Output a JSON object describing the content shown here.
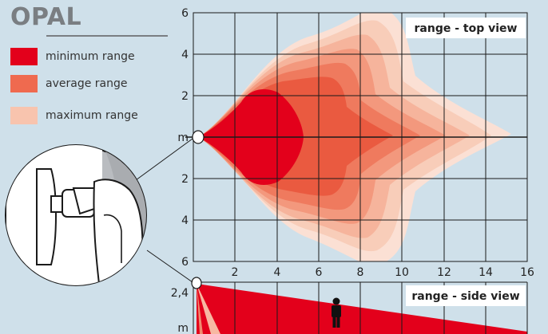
{
  "title": "OPAL",
  "legend": [
    {
      "label": "minimum range",
      "color": "#e3001b"
    },
    {
      "label": "average range",
      "color": "#ef6a4f"
    },
    {
      "label": "maximum range",
      "color": "#f8c4ae"
    }
  ],
  "top_view": {
    "label": "range - top view",
    "y_ticks": [
      "6",
      "4",
      "2",
      "m",
      "2",
      "4",
      "6"
    ],
    "x_ticks": [
      "2",
      "4",
      "6",
      "8",
      "10",
      "12",
      "14",
      "16"
    ]
  },
  "side_view": {
    "label": "range - side view",
    "y_ticks": [
      "2,4",
      "m"
    ]
  },
  "colors": {
    "background": "#cfe0ea",
    "grid": "#1a1a1a",
    "min": "#e3001b",
    "mid": "#ef6a4f",
    "max": "#f8c4ae"
  }
}
